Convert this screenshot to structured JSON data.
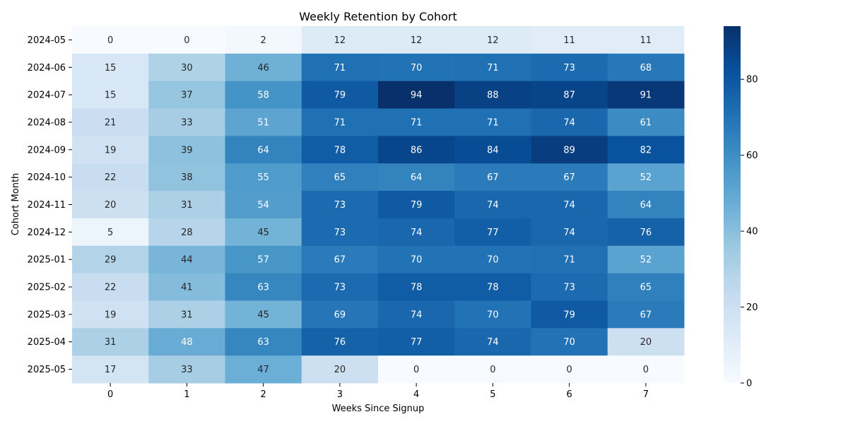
{
  "chart_data": {
    "type": "heatmap",
    "title": "Weekly Retention by Cohort",
    "xlabel": "Weeks Since Signup",
    "ylabel": "Cohort Month",
    "x_categories": [
      "0",
      "1",
      "2",
      "3",
      "4",
      "5",
      "6",
      "7"
    ],
    "y_categories": [
      "2024-05",
      "2024-06",
      "2024-07",
      "2024-08",
      "2024-09",
      "2024-10",
      "2024-11",
      "2024-12",
      "2025-01",
      "2025-02",
      "2025-03",
      "2025-04",
      "2025-05"
    ],
    "values": [
      [
        0,
        0,
        2,
        12,
        12,
        12,
        11,
        11
      ],
      [
        15,
        30,
        46,
        71,
        70,
        71,
        73,
        68
      ],
      [
        15,
        37,
        58,
        79,
        94,
        88,
        87,
        91
      ],
      [
        21,
        33,
        51,
        71,
        71,
        71,
        74,
        61
      ],
      [
        19,
        39,
        64,
        78,
        86,
        84,
        89,
        82
      ],
      [
        22,
        38,
        55,
        65,
        64,
        67,
        67,
        52
      ],
      [
        20,
        31,
        54,
        73,
        79,
        74,
        74,
        64
      ],
      [
        5,
        28,
        45,
        73,
        74,
        77,
        74,
        76
      ],
      [
        29,
        44,
        57,
        67,
        70,
        70,
        71,
        52
      ],
      [
        22,
        41,
        63,
        73,
        78,
        78,
        73,
        65
      ],
      [
        19,
        31,
        45,
        69,
        74,
        70,
        79,
        67
      ],
      [
        31,
        48,
        63,
        76,
        77,
        74,
        70,
        20
      ],
      [
        17,
        33,
        47,
        20,
        0,
        0,
        0,
        0
      ]
    ],
    "colorbar": {
      "min": 0,
      "max": 94,
      "ticks": [
        "0",
        "20",
        "40",
        "60",
        "80"
      ]
    },
    "colormap": "Blues",
    "annotated": true,
    "legend": "colorbar-right"
  }
}
